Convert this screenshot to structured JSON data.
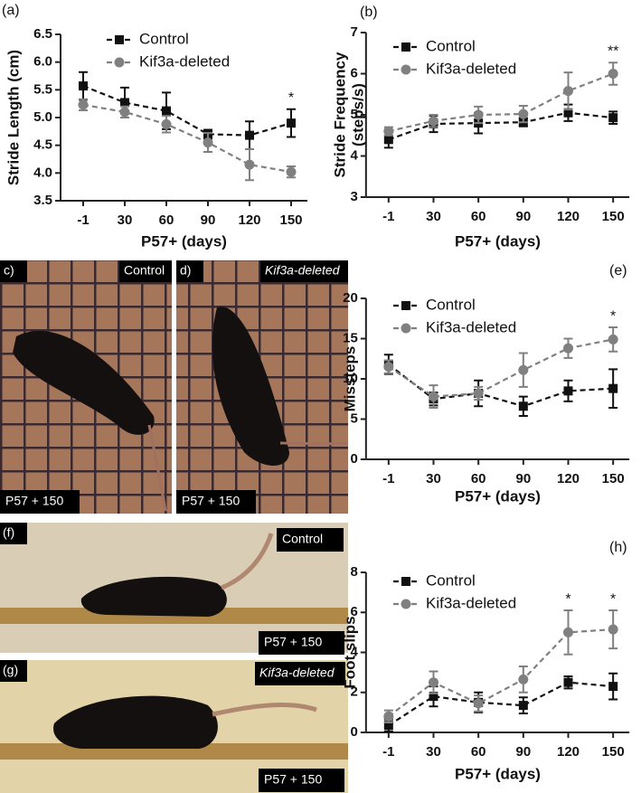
{
  "chart_data": [
    {
      "type": "line",
      "panel": "(a)",
      "xlabel": "P57+ (days)",
      "ylabel": [
        "Stride Length (cm)"
      ],
      "categories": [
        "-1",
        "30",
        "60",
        "90",
        "120",
        "150"
      ],
      "ylim": [
        3.5,
        6.5
      ],
      "yticks": [
        3.5,
        {
          "value": 4,
          "label": "4.0"
        },
        4.5,
        {
          "value": 5,
          "label": "5.0"
        },
        5.5,
        {
          "value": 6,
          "label": "6.0"
        },
        6.5
      ],
      "series": [
        {
          "name": "Control",
          "color": "#111111",
          "marker": "square",
          "values": [
            5.57,
            5.27,
            5.12,
            4.7,
            4.68,
            4.9
          ],
          "errors": [
            0.25,
            0.27,
            0.33,
            0.08,
            0.25,
            0.25
          ]
        },
        {
          "name": "Kif3a-deleted",
          "color": "#808080",
          "marker": "circle",
          "values": [
            5.23,
            5.1,
            4.88,
            4.55,
            4.15,
            4.02
          ],
          "errors": [
            0.1,
            0.1,
            0.15,
            0.17,
            0.28,
            0.1
          ]
        }
      ],
      "annotations": [
        {
          "text": "*",
          "category": "150"
        }
      ]
    },
    {
      "type": "line",
      "panel": "(b)",
      "xlabel": "P57+ (days)",
      "ylabel": [
        "Stride Frequency",
        "(steps/s)"
      ],
      "categories": [
        "-1",
        "30",
        "60",
        "90",
        "120",
        "150"
      ],
      "ylim": [
        3,
        7
      ],
      "yticks": [
        3,
        4,
        5,
        6,
        7
      ],
      "series": [
        {
          "name": "Control",
          "color": "#111111",
          "marker": "square",
          "values": [
            4.4,
            4.78,
            4.8,
            4.82,
            5.05,
            4.93
          ],
          "errors": [
            0.2,
            0.2,
            0.25,
            0.1,
            0.2,
            0.15
          ]
        },
        {
          "name": "Kif3a-deleted",
          "color": "#808080",
          "marker": "circle",
          "values": [
            4.6,
            4.85,
            5.0,
            5.02,
            5.58,
            6.0
          ],
          "errors": [
            0.1,
            0.15,
            0.2,
            0.2,
            0.45,
            0.27
          ]
        }
      ],
      "annotations": [
        {
          "text": "**",
          "category": "150"
        }
      ]
    },
    {
      "type": "line",
      "panel": "(e)",
      "xlabel": "P57+ (days)",
      "ylabel": [
        "Missteps"
      ],
      "categories": [
        "-1",
        "30",
        "60",
        "90",
        "120",
        "150"
      ],
      "ylim": [
        0,
        20
      ],
      "yticks": [
        0,
        5,
        10,
        15,
        20
      ],
      "series": [
        {
          "name": "Control",
          "color": "#111111",
          "marker": "square",
          "values": [
            11.8,
            7.5,
            8.2,
            6.6,
            8.5,
            8.8
          ],
          "errors": [
            1.2,
            0.8,
            1.6,
            1.2,
            1.3,
            2.4
          ]
        },
        {
          "name": "Kif3a-deleted",
          "color": "#808080",
          "marker": "circle",
          "values": [
            11.5,
            7.8,
            8.2,
            11.1,
            13.8,
            14.9
          ],
          "errors": [
            0.8,
            1.4,
            0.8,
            2.1,
            1.2,
            1.5
          ]
        }
      ],
      "annotations": [
        {
          "text": "*",
          "category": "150"
        }
      ]
    },
    {
      "type": "line",
      "panel": "(h)",
      "xlabel": "P57+ (days)",
      "ylabel": [
        "Foot slips"
      ],
      "categories": [
        "-1",
        "30",
        "60",
        "90",
        "120",
        "150"
      ],
      "ylim": [
        0,
        8
      ],
      "yticks": [
        0,
        2,
        4,
        6,
        8
      ],
      "series": [
        {
          "name": "Control",
          "color": "#111111",
          "marker": "square",
          "values": [
            0.35,
            1.8,
            1.5,
            1.35,
            2.5,
            2.3
          ],
          "errors": [
            0.3,
            0.5,
            0.5,
            0.4,
            0.3,
            0.65
          ]
        },
        {
          "name": "Kif3a-deleted",
          "color": "#808080",
          "marker": "circle",
          "values": [
            0.8,
            2.5,
            1.45,
            2.65,
            5.0,
            5.15
          ],
          "errors": [
            0.3,
            0.55,
            0.4,
            0.65,
            1.1,
            0.95
          ]
        }
      ],
      "annotations": [
        {
          "text": "*",
          "category": "120"
        },
        {
          "text": "*",
          "category": "150"
        }
      ]
    }
  ],
  "photos": [
    {
      "panel": "c)",
      "caption": "Control",
      "stamp": "P57 + 150"
    },
    {
      "panel": "d)",
      "caption": "Kif3a-deleted",
      "stamp": "P57 + 150"
    },
    {
      "panel": "(f)",
      "caption": "Control",
      "stamp": "P57 + 150"
    },
    {
      "panel": "(g)",
      "caption": "Kif3a-deleted",
      "stamp": "P57 + 150"
    }
  ]
}
